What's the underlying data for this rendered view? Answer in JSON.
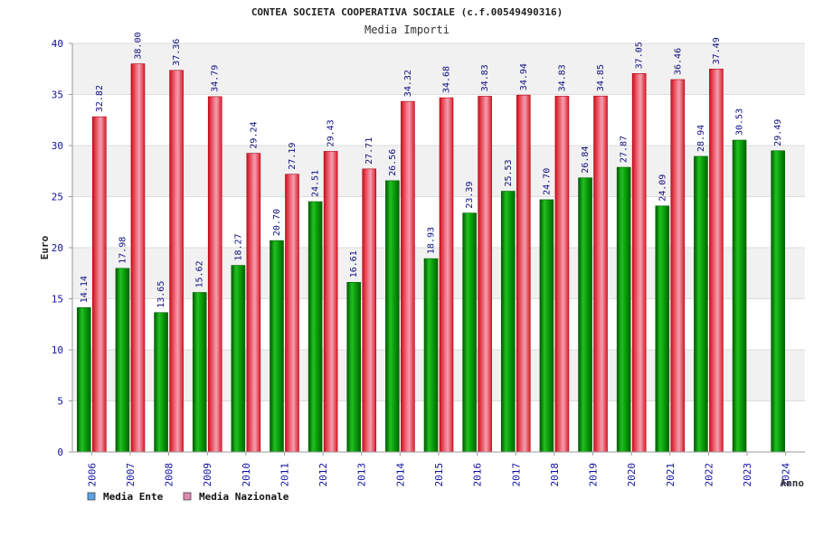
{
  "chart_data": {
    "type": "bar",
    "title": "CONTEA SOCIETA COOPERATIVA SOCIALE (c.f.00549490316)",
    "subtitle": "Media Importi",
    "ylabel": "Euro",
    "xlabel": "Anno",
    "ylim": [
      0,
      40
    ],
    "yticks": [
      0,
      5,
      10,
      15,
      20,
      25,
      30,
      35,
      40
    ],
    "grid": true,
    "legend_position": "bottom-left",
    "categories": [
      "2006",
      "2007",
      "2008",
      "2009",
      "2010",
      "2011",
      "2012",
      "2013",
      "2014",
      "2015",
      "2016",
      "2017",
      "2018",
      "2019",
      "2020",
      "2021",
      "2022",
      "2023",
      "2024"
    ],
    "series": [
      {
        "name": "Media Ente",
        "color": "#00a000",
        "legend_color": "#5ba3e6",
        "values": [
          14.14,
          17.98,
          13.65,
          15.62,
          18.27,
          20.7,
          24.51,
          16.61,
          26.56,
          18.93,
          23.39,
          25.53,
          24.7,
          26.84,
          27.87,
          24.09,
          28.94,
          30.53,
          29.49
        ]
      },
      {
        "name": "Media Nazionale",
        "color": "#e8202a",
        "legend_color": "#e08ab0",
        "values": [
          32.82,
          38.0,
          37.36,
          34.79,
          29.24,
          27.19,
          29.43,
          27.71,
          34.32,
          34.68,
          34.83,
          34.94,
          34.83,
          34.85,
          37.05,
          36.46,
          37.49,
          null,
          null
        ]
      }
    ]
  }
}
